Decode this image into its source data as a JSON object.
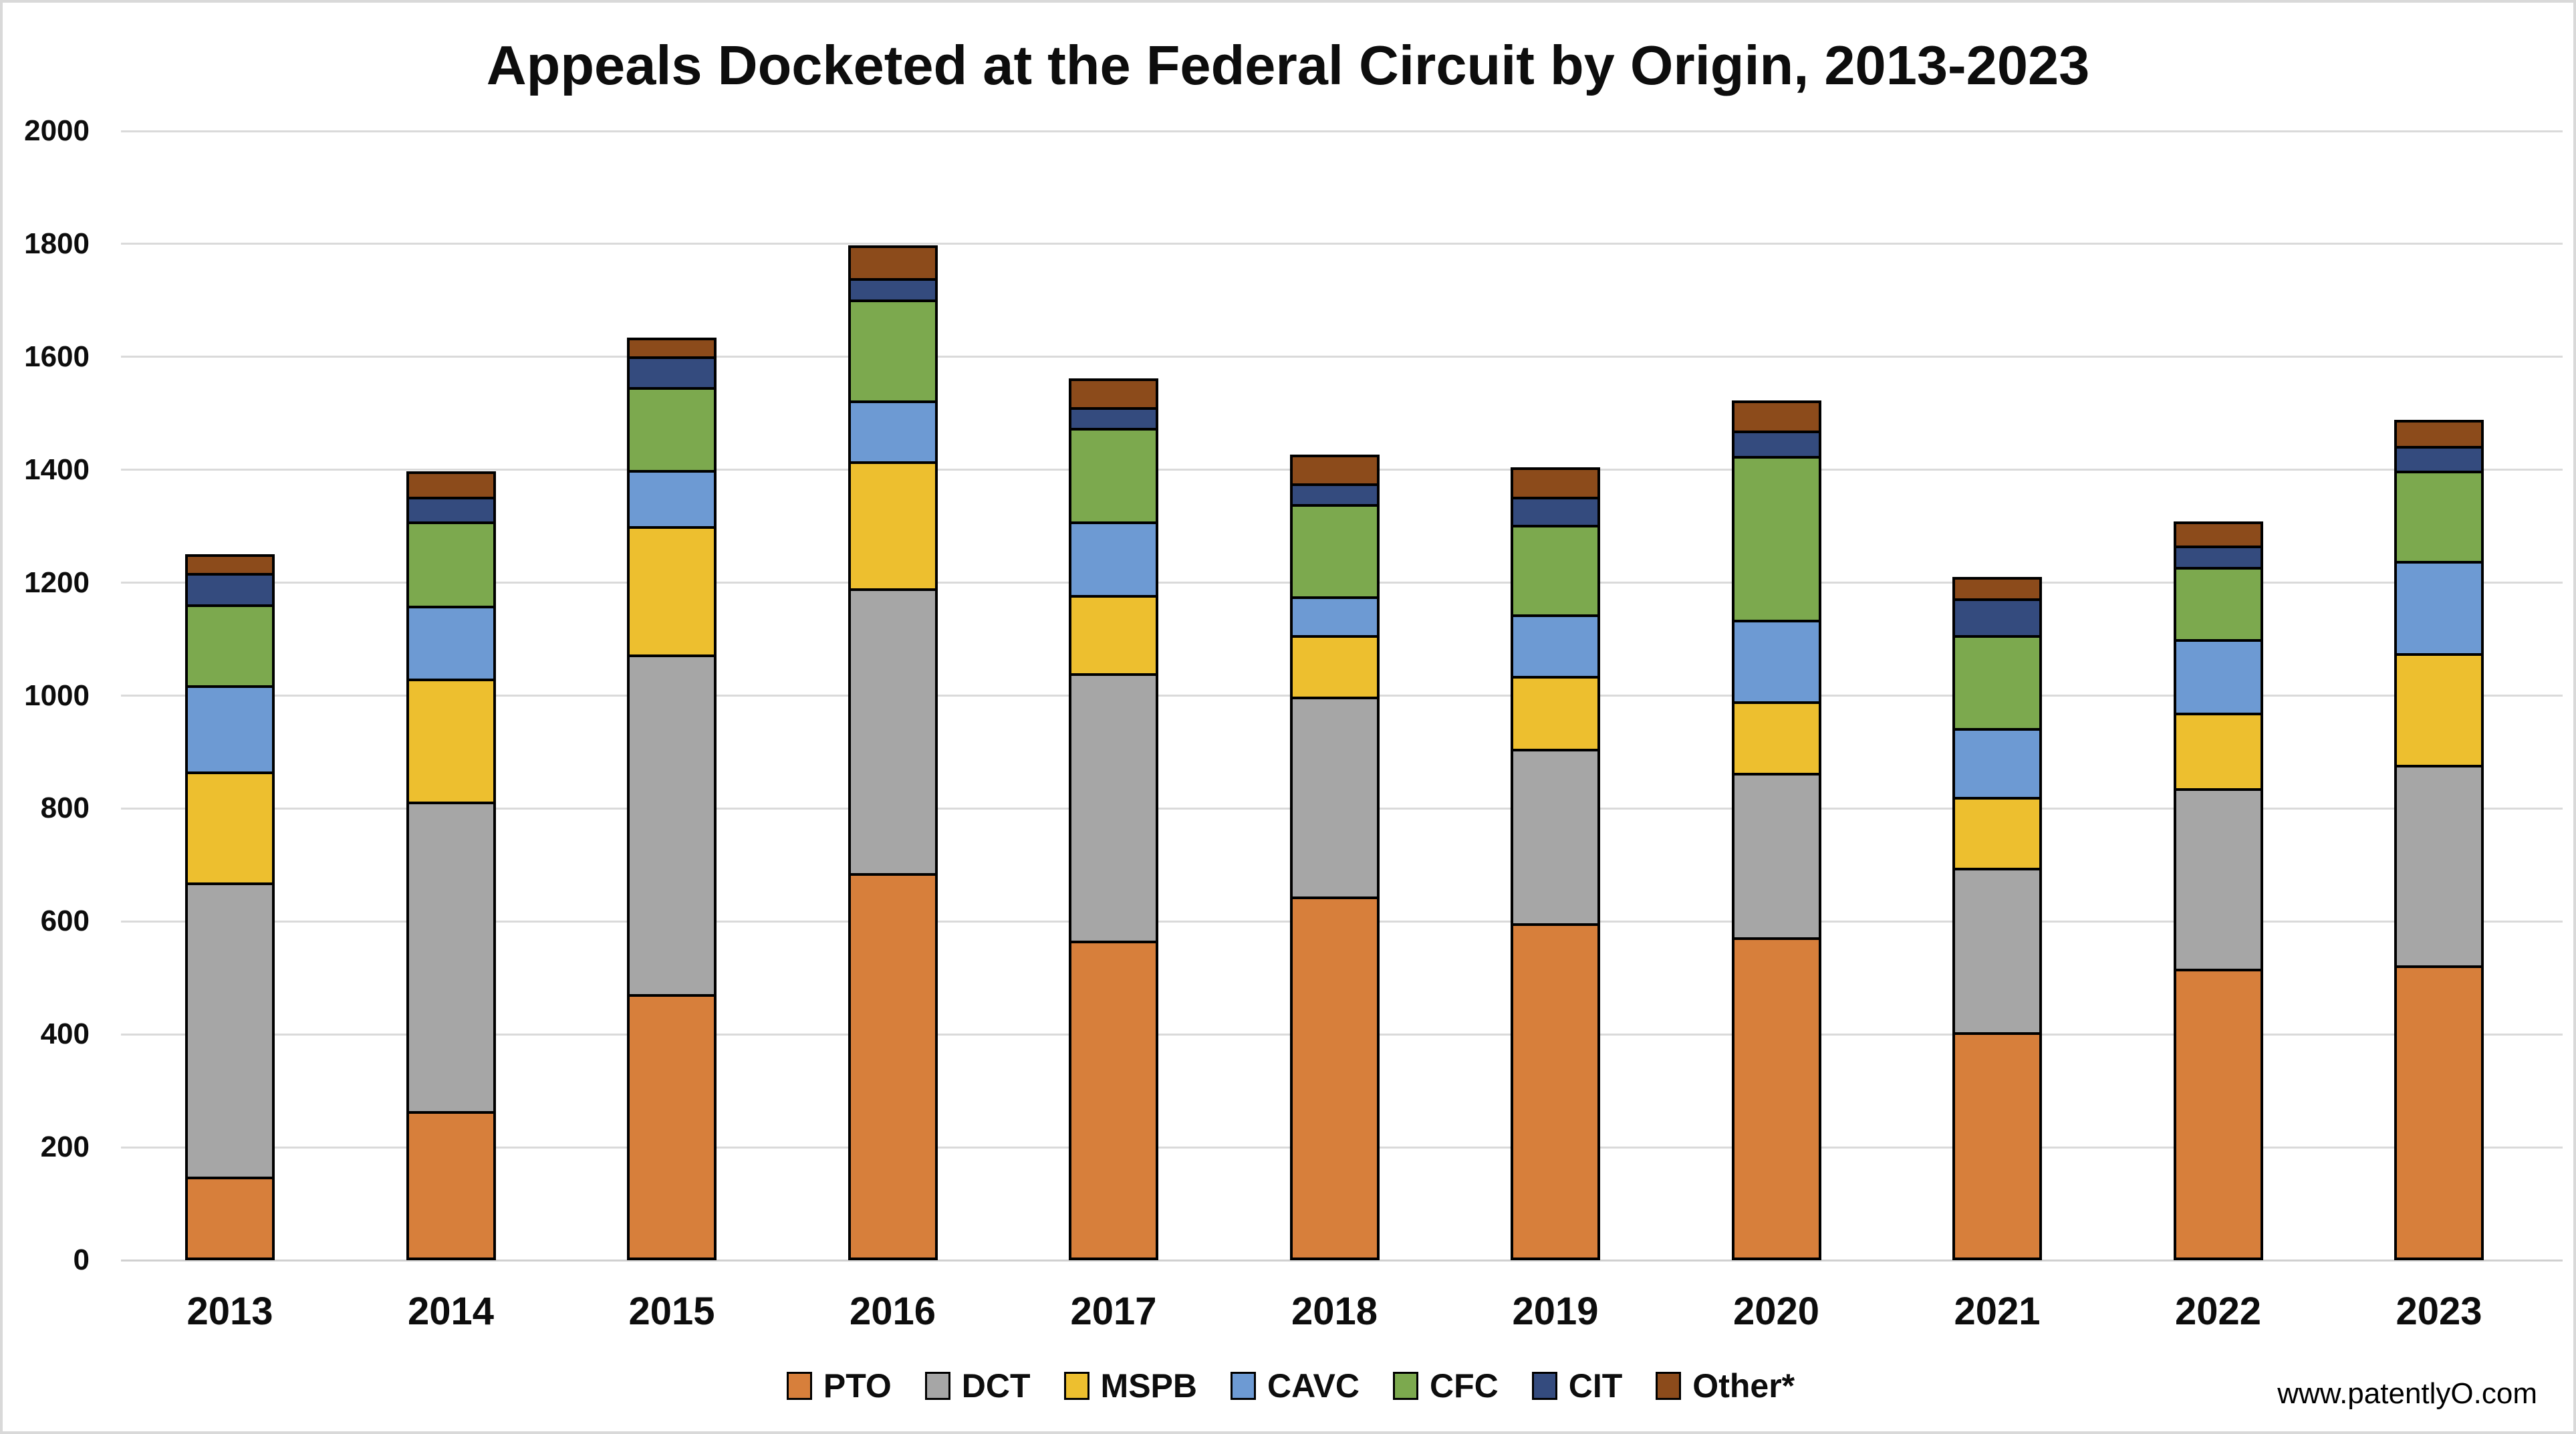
{
  "title": "Appeals Docketed at the Federal Circuit by Origin, 2013-2023",
  "watermark": "www.patentlyO.com",
  "chart_data": {
    "type": "bar",
    "stacked": true,
    "title": "Appeals Docketed at the Federal Circuit by Origin, 2013-2023",
    "categories": [
      "2013",
      "2014",
      "2015",
      "2016",
      "2017",
      "2018",
      "2019",
      "2020",
      "2021",
      "2022",
      "2023"
    ],
    "series": [
      {
        "name": "PTO",
        "color": "#d77f3b",
        "values": [
          143,
          259,
          466,
          681,
          561,
          640,
          592,
          567,
          399,
          512,
          518
        ]
      },
      {
        "name": "DCT",
        "color": "#a6a6a6",
        "values": [
          521,
          549,
          602,
          504,
          474,
          354,
          309,
          292,
          291,
          319,
          355
        ]
      },
      {
        "name": "MSPB",
        "color": "#edbf2f",
        "values": [
          197,
          218,
          228,
          225,
          138,
          109,
          129,
          126,
          126,
          134,
          197
        ]
      },
      {
        "name": "CAVC",
        "color": "#6d9ad3",
        "values": [
          153,
          128,
          99,
          108,
          131,
          68,
          109,
          145,
          122,
          130,
          164
        ]
      },
      {
        "name": "CFC",
        "color": "#7ca94e",
        "values": [
          143,
          150,
          147,
          179,
          166,
          163,
          159,
          290,
          164,
          128,
          160
        ]
      },
      {
        "name": "CIT",
        "color": "#344b7e",
        "values": [
          56,
          44,
          54,
          38,
          36,
          37,
          49,
          45,
          65,
          38,
          43
        ]
      },
      {
        "name": "Other*",
        "color": "#8c4b1b",
        "values": [
          38,
          49,
          38,
          62,
          56,
          56,
          57,
          58,
          43,
          48,
          51
        ]
      }
    ],
    "totals": [
      1251,
      1397,
      1634,
      1797,
      1562,
      1427,
      1404,
      1523,
      1210,
      1309,
      1488
    ],
    "xlabel": "",
    "ylabel": "",
    "ylim": [
      0,
      2000
    ],
    "ytick_step": 200,
    "yticks": [
      "0",
      "200",
      "400",
      "600",
      "800",
      "1000",
      "1200",
      "1400",
      "1600",
      "1800",
      "2000"
    ],
    "grid": true,
    "legend_position": "bottom"
  }
}
